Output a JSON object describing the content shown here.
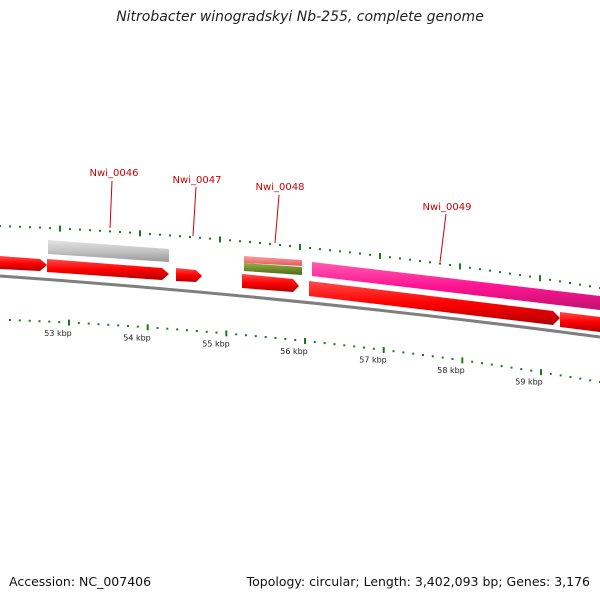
{
  "title": "Nitrobacter winogradskyi Nb-255, complete genome",
  "footer": {
    "accession": "Accession: NC_007406",
    "summary": "Topology: circular; Length: 3,402,093 bp; Genes: 3,176"
  },
  "colors": {
    "cds": "#ff0000",
    "gene_label": "#cc0000",
    "tick": "#1a7a1a",
    "backbone": "#7f7f7f",
    "feature_gray": "#c4c4c4",
    "feature_magenta": "#ff1493",
    "feature_pink": "#f07070",
    "feature_olive": "#6b8e23"
  },
  "ruler": {
    "labels": [
      "53 kbp",
      "54 kbp",
      "55 kbp",
      "56 kbp",
      "57 kbp",
      "58 kbp",
      "59 kbp"
    ]
  },
  "genes": [
    {
      "name": "Nwi_0046"
    },
    {
      "name": "Nwi_0047"
    },
    {
      "name": "Nwi_0048"
    },
    {
      "name": "Nwi_0049"
    }
  ]
}
